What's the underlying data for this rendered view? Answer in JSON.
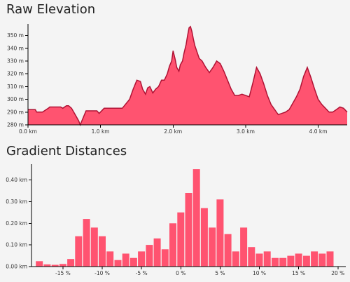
{
  "chart_data": [
    {
      "type": "area",
      "title": "Raw Elevation",
      "xlabel": "",
      "ylabel": "",
      "xlim": [
        0,
        4.4
      ],
      "ylim": [
        280,
        358
      ],
      "x_ticks": [
        0,
        1,
        2,
        3,
        4
      ],
      "x_tick_labels": [
        "0.0 km",
        "1.0 km",
        "2.0 km",
        "3.0 km",
        "4.0 km"
      ],
      "y_ticks": [
        280,
        290,
        300,
        310,
        320,
        330,
        340,
        350
      ],
      "y_tick_labels": [
        "280 m",
        "290 m",
        "300 m",
        "310 m",
        "320 m",
        "330 m",
        "340 m",
        "350 m"
      ],
      "fill_color": "#ff5370",
      "line_color": "#b01234",
      "series": [
        {
          "x": [
            0,
            0.1,
            0.12,
            0.2,
            0.28,
            0.3,
            0.45,
            0.48,
            0.53,
            0.56,
            0.6,
            0.65,
            0.7,
            0.72,
            0.8,
            0.86,
            0.95,
            0.98,
            1.05,
            1.1,
            1.2,
            1.3,
            1.4,
            1.45,
            1.5,
            1.55,
            1.58,
            1.62,
            1.65,
            1.68,
            1.72,
            1.76,
            1.8,
            1.84,
            1.88,
            1.92,
            1.95,
            1.98,
            2.0,
            2.03,
            2.05,
            2.08,
            2.1,
            2.13,
            2.15,
            2.18,
            2.2,
            2.22,
            2.24,
            2.26,
            2.28,
            2.3,
            2.33,
            2.36,
            2.4,
            2.45,
            2.5,
            2.55,
            2.6,
            2.65,
            2.7,
            2.75,
            2.8,
            2.85,
            2.9,
            2.95,
            3.0,
            3.05,
            3.1,
            3.15,
            3.2,
            3.25,
            3.3,
            3.35,
            3.4,
            3.45,
            3.5,
            3.55,
            3.6,
            3.65,
            3.7,
            3.75,
            3.8,
            3.85,
            3.9,
            3.95,
            4.0,
            4.05,
            4.1,
            4.15,
            4.2,
            4.25,
            4.3,
            4.35,
            4.4
          ],
          "values": [
            292,
            292,
            290,
            290,
            293,
            294,
            294,
            293,
            295,
            295,
            293,
            288,
            283,
            280,
            291,
            291,
            291,
            289,
            293,
            293,
            293,
            293,
            300,
            308,
            315,
            314,
            308,
            304,
            309,
            310,
            305,
            308,
            310,
            315,
            315,
            320,
            326,
            330,
            338,
            331,
            325,
            322,
            327,
            330,
            336,
            343,
            350,
            356,
            357,
            353,
            347,
            342,
            337,
            332,
            330,
            325,
            321,
            325,
            330,
            328,
            322,
            315,
            308,
            303,
            303,
            304,
            303,
            302,
            313,
            325,
            320,
            312,
            303,
            296,
            292,
            288,
            289,
            290,
            292,
            297,
            302,
            308,
            318,
            325,
            317,
            308,
            300,
            296,
            293,
            290,
            290,
            292,
            294,
            293,
            290
          ]
        }
      ]
    },
    {
      "type": "bar",
      "title": "Gradient Distances",
      "xlabel": "",
      "ylabel": "",
      "xlim": [
        -19,
        21
      ],
      "ylim": [
        0,
        0.46
      ],
      "x_ticks": [
        -15,
        -10,
        -5,
        0,
        5,
        10,
        15,
        20
      ],
      "x_tick_labels": [
        "-15 %",
        "-10 %",
        "-5 %",
        "0 %",
        "5 %",
        "10 %",
        "15 %",
        "20 %"
      ],
      "y_ticks": [
        0,
        0.1,
        0.2,
        0.3,
        0.4
      ],
      "y_tick_labels": [
        "0.00 km",
        "0.10 km",
        "0.20 km",
        "0.30 km",
        "0.40 km"
      ],
      "bar_width_pct": 1,
      "bar_color": "#ff5370",
      "categories": [
        -18,
        -17,
        -16,
        -15,
        -14,
        -13,
        -12,
        -11,
        -10,
        -9,
        -8,
        -7,
        -6,
        -5,
        -4,
        -3,
        -2,
        -1,
        0,
        1,
        2,
        3,
        4,
        5,
        6,
        7,
        8,
        9,
        10,
        11,
        12,
        13,
        14,
        15,
        16,
        17,
        18,
        19
      ],
      "values": [
        0.025,
        0.01,
        0.008,
        0.012,
        0.035,
        0.14,
        0.22,
        0.18,
        0.14,
        0.07,
        0.03,
        0.06,
        0.04,
        0.07,
        0.1,
        0.13,
        0.08,
        0.2,
        0.25,
        0.34,
        0.45,
        0.27,
        0.18,
        0.31,
        0.15,
        0.07,
        0.18,
        0.09,
        0.06,
        0.07,
        0.04,
        0.04,
        0.05,
        0.06,
        0.05,
        0.07,
        0.06,
        0.07
      ]
    }
  ]
}
